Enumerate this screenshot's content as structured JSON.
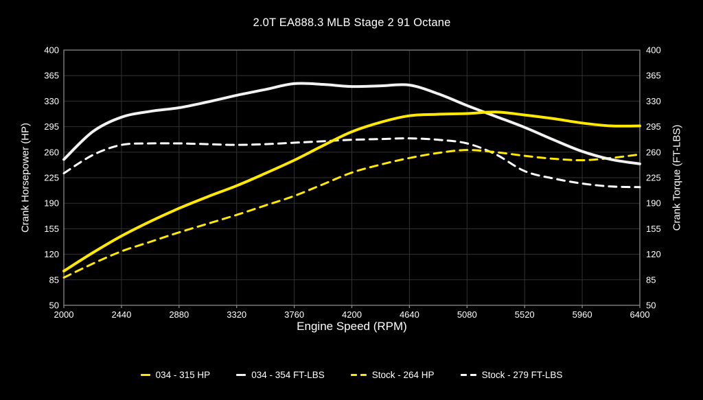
{
  "title": "2.0T EA888.3 MLB Stage 2 91 Octane",
  "axes": {
    "x_label": "Engine Speed (RPM)",
    "y_left_label": "Crank Horsepower (HP)",
    "y_right_label": "Crank Torque (FT-LBS)"
  },
  "colors": {
    "background": "#000000",
    "text": "#ffffff",
    "grid": "#333333",
    "spine": "#8a8a8a",
    "accent_yellow": "#ffe900",
    "accent_white": "#f2f2f2"
  },
  "chart_data": {
    "type": "line",
    "title": "2.0T EA888.3 MLB Stage 2 91 Octane",
    "xlabel": "Engine Speed (RPM)",
    "ylabel_left": "Crank Horsepower (HP)",
    "ylabel_right": "Crank Torque (FT-LBS)",
    "xlim": [
      2000,
      6400
    ],
    "ylim": [
      50,
      400
    ],
    "x_ticks": [
      2000,
      2440,
      2880,
      3320,
      3760,
      4200,
      4640,
      5080,
      5520,
      5960,
      6400
    ],
    "y_ticks": [
      50,
      85,
      120,
      155,
      190,
      225,
      260,
      295,
      330,
      365,
      400
    ],
    "grid": true,
    "legend_position": "bottom",
    "x": [
      2000,
      2220,
      2440,
      2660,
      2880,
      3100,
      3320,
      3540,
      3760,
      3980,
      4200,
      4420,
      4640,
      4860,
      5080,
      5300,
      5520,
      5740,
      5960,
      6180,
      6400
    ],
    "series": [
      {
        "name": "034 - 315 HP",
        "peak": 315,
        "color": "#ffe900",
        "dash": "solid",
        "width": 4,
        "values": [
          97,
          122,
          145,
          165,
          183,
          199,
          214,
          231,
          249,
          269,
          288,
          301,
          310,
          312,
          313,
          315,
          311,
          306,
          300,
          296,
          296
        ]
      },
      {
        "name": "034 - 354 FT-LBS",
        "peak": 354,
        "color": "#f2f2f2",
        "dash": "solid",
        "width": 4,
        "values": [
          250,
          288,
          308,
          316,
          321,
          329,
          338,
          346,
          354,
          353,
          350,
          351,
          352,
          340,
          324,
          309,
          294,
          277,
          261,
          250,
          244
        ]
      },
      {
        "name": "Stock - 264 HP",
        "peak": 264,
        "color": "#ffe900",
        "dash": "dashed",
        "width": 3,
        "values": [
          88,
          107,
          124,
          137,
          150,
          162,
          174,
          187,
          200,
          216,
          232,
          243,
          252,
          259,
          263,
          260,
          255,
          251,
          249,
          252,
          257
        ]
      },
      {
        "name": "Stock - 279 FT-LBS",
        "peak": 279,
        "color": "#ffffff",
        "dash": "dashed",
        "width": 3,
        "values": [
          231,
          256,
          270,
          272,
          272,
          271,
          270,
          271,
          273,
          275,
          277,
          278,
          279,
          277,
          272,
          257,
          234,
          224,
          217,
          213,
          212
        ]
      }
    ]
  }
}
